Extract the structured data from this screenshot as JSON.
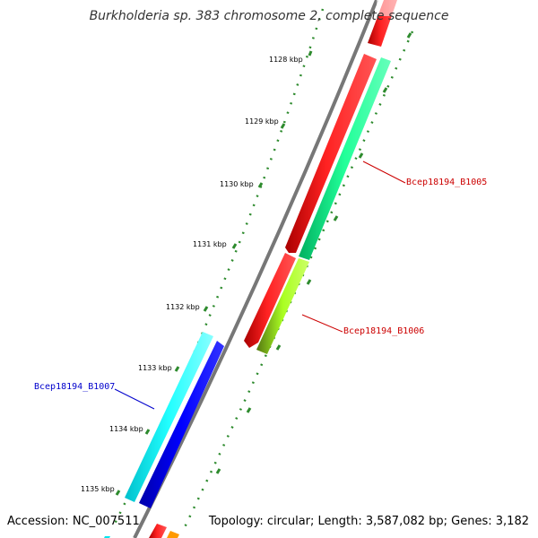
{
  "title": "Burkholderia sp. 383 chromosome 2, complete sequence",
  "footer": {
    "accession": "Accession: NC_007511",
    "summary": "Topology: circular; Length: 3,587,082 bp; Genes: 3,182"
  },
  "ticks": [
    "1128 kbp",
    "1129 kbp",
    "1130 kbp",
    "1131 kbp",
    "1132 kbp",
    "1133 kbp",
    "1134 kbp",
    "1135 kbp"
  ],
  "genes": [
    {
      "label": "Bcep18194_B1005",
      "color": "#cc0000"
    },
    {
      "label": "Bcep18194_B1006",
      "color": "#cc0000"
    },
    {
      "label": "Bcep18194_B1007",
      "color": "#0000cc"
    }
  ],
  "colors": {
    "backbone": "#888888",
    "tick": "#2e8b2e",
    "forward_gene": "#ff0000",
    "reverse_gene_1": "#00ee88",
    "reverse_gene_2": "#aaff22",
    "cyan_gene": "#00e5ee",
    "blue_gene": "#0000ee",
    "orange_gene": "#ff9900"
  }
}
